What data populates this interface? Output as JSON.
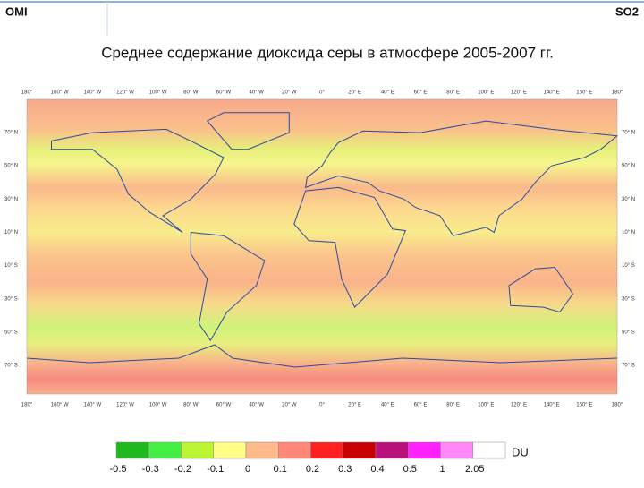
{
  "header": {
    "left": "OMI",
    "right": "SO2"
  },
  "title": "Среднее содержание диоксида серы в атмосфере 2005-2007 гг.",
  "map": {
    "lon_labels": [
      "180°",
      "160° W",
      "140° W",
      "120° W",
      "100° W",
      "80° W",
      "60° W",
      "40° W",
      "20° W",
      "0°",
      "20° E",
      "40° E",
      "60° E",
      "80° E",
      "100° E",
      "120° E",
      "140° E",
      "160° E",
      "180°"
    ],
    "lat_labels": [
      "70° N",
      "50° N",
      "30° N",
      "10° N",
      "10° S",
      "30° S",
      "50° S",
      "70° S"
    ]
  },
  "legend": {
    "colors": [
      "#1fb81f",
      "#44ee44",
      "#bbf533",
      "#ffff88",
      "#ffb98a",
      "#ff8878",
      "#ff2020",
      "#c80000",
      "#b8127a",
      "#ff22ff",
      "#ff88f8",
      "#ffffff"
    ],
    "labels": [
      -0.5,
      -0.3,
      -0.2,
      -0.1,
      0,
      0.1,
      0.2,
      0.3,
      0.4,
      0.5,
      1,
      2.05
    ],
    "unit": "DU"
  }
}
